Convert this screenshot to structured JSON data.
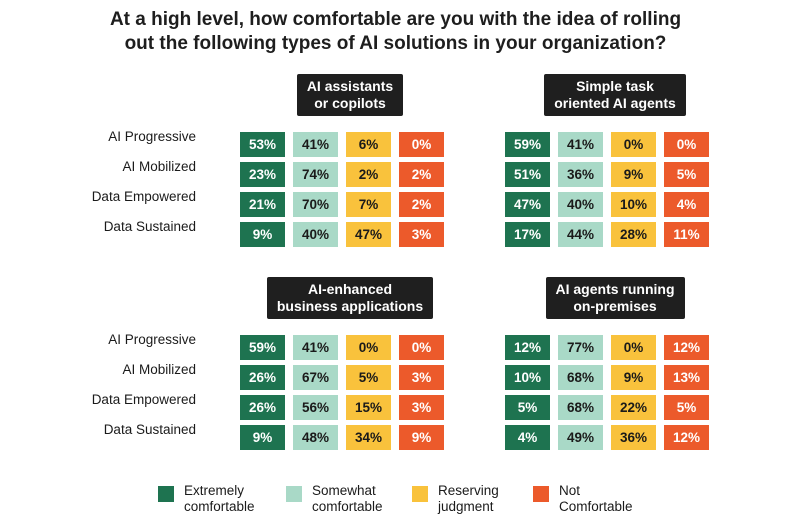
{
  "chart_data": {
    "type": "table",
    "title": [
      "At a high level, how comfortable are you with the idea of rolling",
      "out the following types of AI solutions in your organization?"
    ],
    "rows": [
      "AI Progressive",
      "AI Mobilized",
      "Data Empowered",
      "Data Sustained"
    ],
    "legend": [
      {
        "lines": [
          "Extremely",
          "comfortable"
        ],
        "color": "#1e7350"
      },
      {
        "lines": [
          "Somewhat",
          "comfortable"
        ],
        "color": "#a9d9c7"
      },
      {
        "lines": [
          "Reserving",
          "judgment"
        ],
        "color": "#f9c23c"
      },
      {
        "lines": [
          "Not",
          "Comfortable"
        ],
        "color": "#ec5a2b"
      }
    ],
    "panels": [
      {
        "title": [
          "AI assistants",
          "or copilots"
        ],
        "values": [
          [
            "53%",
            "41%",
            "6%",
            "0%"
          ],
          [
            "23%",
            "74%",
            "2%",
            "2%"
          ],
          [
            "21%",
            "70%",
            "7%",
            "2%"
          ],
          [
            "9%",
            "40%",
            "47%",
            "3%"
          ]
        ]
      },
      {
        "title": [
          "Simple task",
          "oriented AI agents"
        ],
        "values": [
          [
            "59%",
            "41%",
            "0%",
            "0%"
          ],
          [
            "51%",
            "36%",
            "9%",
            "5%"
          ],
          [
            "47%",
            "40%",
            "10%",
            "4%"
          ],
          [
            "17%",
            "44%",
            "28%",
            "11%"
          ]
        ]
      },
      {
        "title": [
          "AI-enhanced",
          "business applications"
        ],
        "values": [
          [
            "59%",
            "41%",
            "0%",
            "0%"
          ],
          [
            "26%",
            "67%",
            "5%",
            "3%"
          ],
          [
            "26%",
            "56%",
            "15%",
            "3%"
          ],
          [
            "9%",
            "48%",
            "34%",
            "9%"
          ]
        ]
      },
      {
        "title": [
          "AI agents running",
          "on-premises"
        ],
        "values": [
          [
            "12%",
            "77%",
            "0%",
            "12%"
          ],
          [
            "10%",
            "68%",
            "9%",
            "13%"
          ],
          [
            "5%",
            "68%",
            "22%",
            "5%"
          ],
          [
            "4%",
            "49%",
            "36%",
            "12%"
          ]
        ]
      }
    ]
  }
}
